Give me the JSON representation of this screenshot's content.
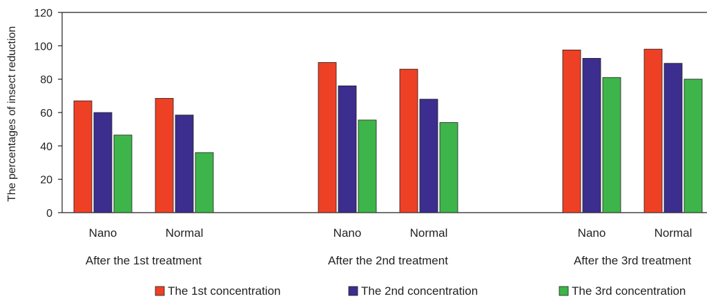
{
  "chart_data": {
    "type": "bar",
    "ylabel": "The percentages of insect reduction",
    "ylim": [
      0,
      120
    ],
    "yticks": [
      0,
      20,
      40,
      60,
      80,
      100,
      120
    ],
    "grid": false,
    "legend_placement": "bottom",
    "groups": [
      {
        "label": "After the 1st treatment",
        "categories": [
          "Nano",
          "Normal"
        ]
      },
      {
        "label": "After the 2nd treatment",
        "categories": [
          "Nano",
          "Normal"
        ]
      },
      {
        "label": "After the 3rd treatment",
        "categories": [
          "Nano",
          "Normal"
        ]
      }
    ],
    "series": [
      {
        "name": "The 1st concentration",
        "color": "#ee4024",
        "values": [
          67,
          68.5,
          90,
          86,
          97.5,
          98
        ]
      },
      {
        "name": "The 2nd concentration",
        "color": "#3b2e8e",
        "values": [
          60,
          58.5,
          76,
          68,
          92.5,
          89.5
        ]
      },
      {
        "name": "The 3rd concentration",
        "color": "#3db54a",
        "values": [
          46.5,
          36,
          55.5,
          54,
          81,
          80
        ]
      }
    ]
  }
}
